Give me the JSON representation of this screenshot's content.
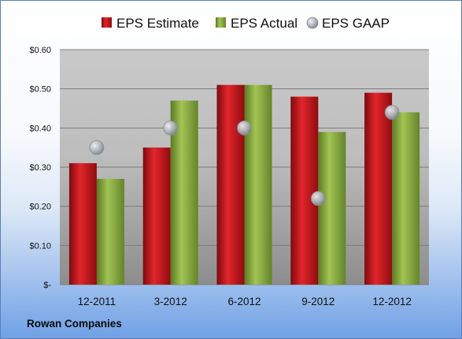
{
  "company": "Rowan Companies",
  "chart_data": {
    "type": "bar",
    "categories": [
      "12-2011",
      "3-2012",
      "6-2012",
      "9-2012",
      "12-2012"
    ],
    "series": [
      {
        "name": "EPS Estimate",
        "kind": "bar",
        "color": "#c0161c",
        "values": [
          0.31,
          0.35,
          0.51,
          0.48,
          0.49
        ]
      },
      {
        "name": "EPS Actual",
        "kind": "bar",
        "color": "#86a63b",
        "values": [
          0.27,
          0.47,
          0.51,
          0.39,
          0.44
        ]
      },
      {
        "name": "EPS GAAP",
        "kind": "marker",
        "color": "#b8bcc4",
        "values": [
          0.35,
          0.4,
          0.4,
          0.22,
          0.44
        ]
      }
    ],
    "y_ticks": [
      "$-",
      "$0.10",
      "$0.20",
      "$0.30",
      "$0.40",
      "$0.50",
      "$0.60"
    ],
    "ylim": [
      0,
      0.6
    ],
    "grid": true,
    "legend_position": "top"
  }
}
